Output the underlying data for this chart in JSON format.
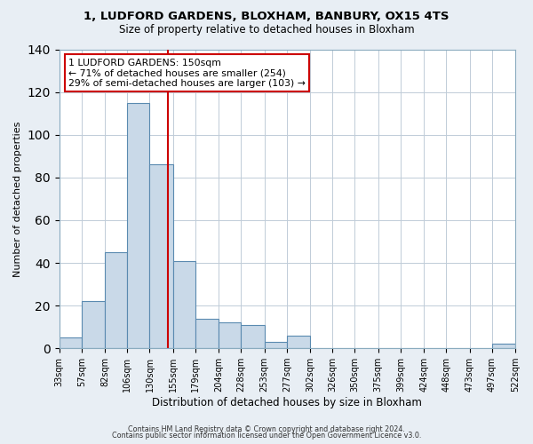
{
  "title_line1": "1, LUDFORD GARDENS, BLOXHAM, BANBURY, OX15 4TS",
  "title_line2": "Size of property relative to detached houses in Bloxham",
  "xlabel": "Distribution of detached houses by size in Bloxham",
  "ylabel": "Number of detached properties",
  "bin_edges": [
    33,
    57,
    82,
    106,
    130,
    155,
    179,
    204,
    228,
    253,
    277,
    302,
    326,
    350,
    375,
    399,
    424,
    448,
    473,
    497,
    522
  ],
  "bin_counts": [
    5,
    22,
    45,
    115,
    86,
    41,
    14,
    12,
    11,
    3,
    6,
    0,
    0,
    0,
    0,
    0,
    0,
    0,
    0,
    2
  ],
  "bar_facecolor": "#c9d9e8",
  "bar_edgecolor": "#5a8ab0",
  "vline_x": 150,
  "vline_color": "#cc0000",
  "annotation_title": "1 LUDFORD GARDENS: 150sqm",
  "annotation_line2": "← 71% of detached houses are smaller (254)",
  "annotation_line3": "29% of semi-detached houses are larger (103) →",
  "annotation_box_edgecolor": "#cc0000",
  "annotation_box_facecolor": "#ffffff",
  "ylim": [
    0,
    140
  ],
  "tick_labels": [
    "33sqm",
    "57sqm",
    "82sqm",
    "106sqm",
    "130sqm",
    "155sqm",
    "179sqm",
    "204sqm",
    "228sqm",
    "253sqm",
    "277sqm",
    "302sqm",
    "326sqm",
    "350sqm",
    "375sqm",
    "399sqm",
    "424sqm",
    "448sqm",
    "473sqm",
    "497sqm",
    "522sqm"
  ],
  "footer_line1": "Contains HM Land Registry data © Crown copyright and database right 2024.",
  "footer_line2": "Contains public sector information licensed under the Open Government Licence v3.0.",
  "background_color": "#e8eef4",
  "plot_background_color": "#ffffff",
  "grid_color": "#c0ccd8",
  "title_fontsize": 9.5,
  "subtitle_fontsize": 8.5
}
